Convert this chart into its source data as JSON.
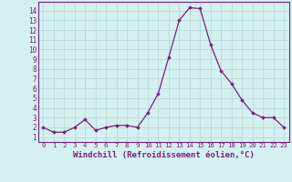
{
  "x": [
    0,
    1,
    2,
    3,
    4,
    5,
    6,
    7,
    8,
    9,
    10,
    11,
    12,
    13,
    14,
    15,
    16,
    17,
    18,
    19,
    20,
    21,
    22,
    23
  ],
  "y": [
    2,
    1.5,
    1.5,
    2,
    2.8,
    1.7,
    2,
    2.2,
    2.2,
    2,
    3.5,
    5.5,
    9.2,
    13,
    14.3,
    14.2,
    10.5,
    7.8,
    6.5,
    4.8,
    3.5,
    3,
    3,
    2
  ],
  "line_color": "#7b1f7b",
  "marker": "D",
  "marker_size": 1.8,
  "line_width": 0.9,
  "xlabel": "Windchill (Refroidissement éolien,°C)",
  "xlabel_fontsize": 6.5,
  "ylabel_ticks": [
    1,
    2,
    3,
    4,
    5,
    6,
    7,
    8,
    9,
    10,
    11,
    12,
    13,
    14
  ],
  "xtick_fontsize": 5.2,
  "ytick_fontsize": 5.5,
  "ylim": [
    0.5,
    14.9
  ],
  "xlim": [
    -0.5,
    23.5
  ],
  "background_color": "#d4f0f0",
  "grid_color": "#b8dada",
  "axis_label_color": "#7b1f7b",
  "tick_color": "#7b1f7b",
  "spine_color": "#7b1f7b"
}
